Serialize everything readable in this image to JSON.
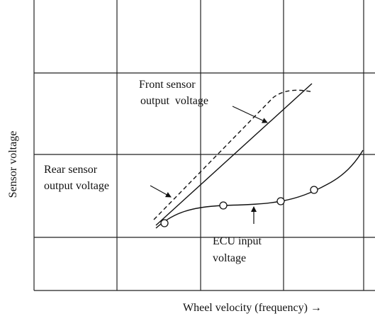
{
  "diagram": {
    "y_axis_label": "Sensor voltage",
    "x_axis_label": "Wheel velocity (frequency) →",
    "labels": {
      "front_sensor": [
        "Front sensor",
        "output  voltage"
      ],
      "rear_sensor": [
        "Rear sensor",
        "output voltage"
      ],
      "ecu_input": [
        "ECU input",
        "voltage"
      ]
    }
  }
}
